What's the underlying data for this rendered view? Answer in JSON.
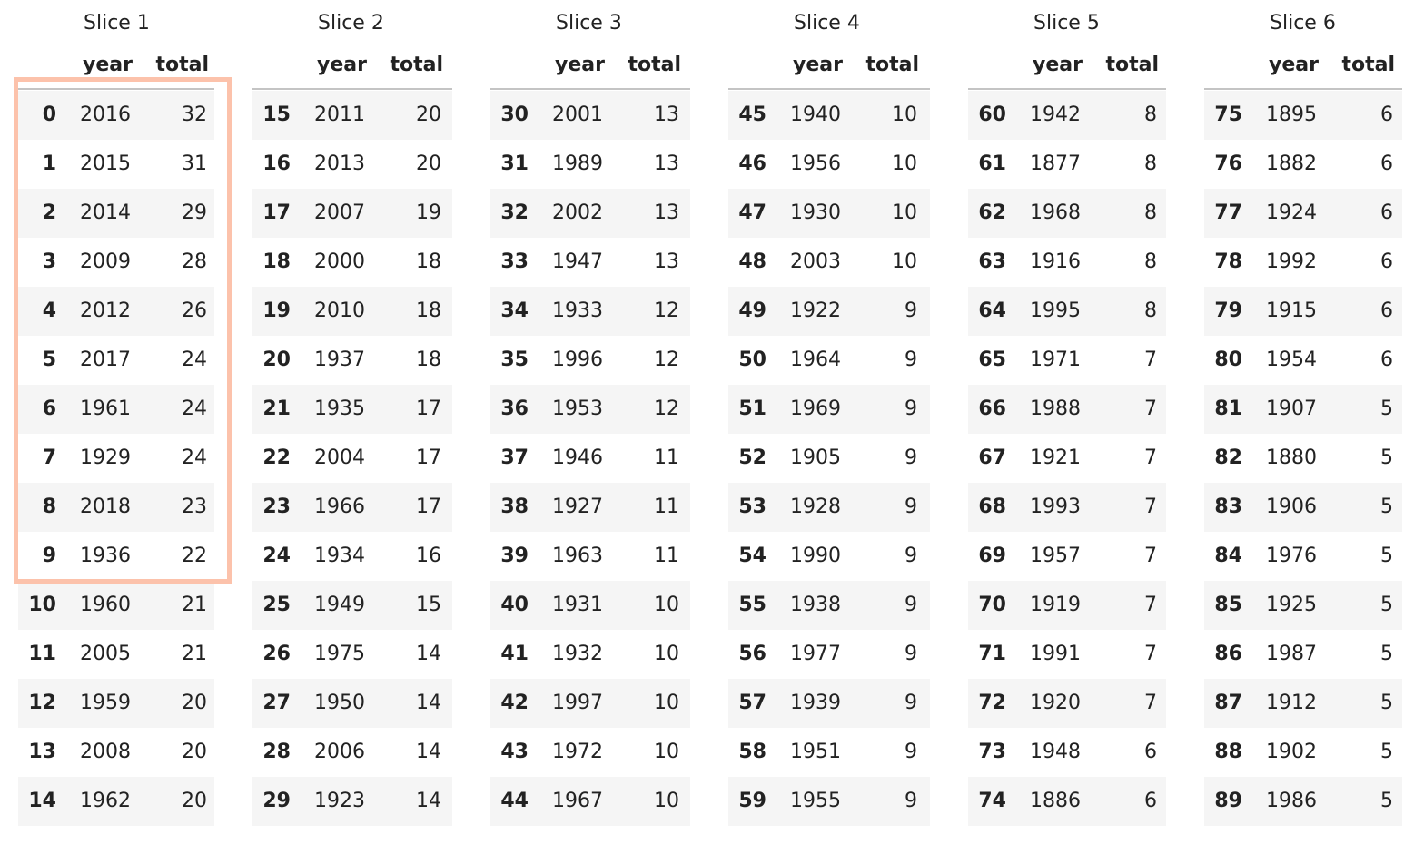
{
  "columns": {
    "year": "year",
    "total": "total"
  },
  "highlight_color": "#fcc2ab",
  "slices": [
    {
      "title": "Slice 1",
      "rows": [
        {
          "idx": "0",
          "year": "2016",
          "total": "32"
        },
        {
          "idx": "1",
          "year": "2015",
          "total": "31"
        },
        {
          "idx": "2",
          "year": "2014",
          "total": "29"
        },
        {
          "idx": "3",
          "year": "2009",
          "total": "28"
        },
        {
          "idx": "4",
          "year": "2012",
          "total": "26"
        },
        {
          "idx": "5",
          "year": "2017",
          "total": "24"
        },
        {
          "idx": "6",
          "year": "1961",
          "total": "24"
        },
        {
          "idx": "7",
          "year": "1929",
          "total": "24"
        },
        {
          "idx": "8",
          "year": "2018",
          "total": "23"
        },
        {
          "idx": "9",
          "year": "1936",
          "total": "22"
        },
        {
          "idx": "10",
          "year": "1960",
          "total": "21"
        },
        {
          "idx": "11",
          "year": "2005",
          "total": "21"
        },
        {
          "idx": "12",
          "year": "1959",
          "total": "20"
        },
        {
          "idx": "13",
          "year": "2008",
          "total": "20"
        },
        {
          "idx": "14",
          "year": "1962",
          "total": "20"
        }
      ]
    },
    {
      "title": "Slice 2",
      "rows": [
        {
          "idx": "15",
          "year": "2011",
          "total": "20"
        },
        {
          "idx": "16",
          "year": "2013",
          "total": "20"
        },
        {
          "idx": "17",
          "year": "2007",
          "total": "19"
        },
        {
          "idx": "18",
          "year": "2000",
          "total": "18"
        },
        {
          "idx": "19",
          "year": "2010",
          "total": "18"
        },
        {
          "idx": "20",
          "year": "1937",
          "total": "18"
        },
        {
          "idx": "21",
          "year": "1935",
          "total": "17"
        },
        {
          "idx": "22",
          "year": "2004",
          "total": "17"
        },
        {
          "idx": "23",
          "year": "1966",
          "total": "17"
        },
        {
          "idx": "24",
          "year": "1934",
          "total": "16"
        },
        {
          "idx": "25",
          "year": "1949",
          "total": "15"
        },
        {
          "idx": "26",
          "year": "1975",
          "total": "14"
        },
        {
          "idx": "27",
          "year": "1950",
          "total": "14"
        },
        {
          "idx": "28",
          "year": "2006",
          "total": "14"
        },
        {
          "idx": "29",
          "year": "1923",
          "total": "14"
        }
      ]
    },
    {
      "title": "Slice 3",
      "rows": [
        {
          "idx": "30",
          "year": "2001",
          "total": "13"
        },
        {
          "idx": "31",
          "year": "1989",
          "total": "13"
        },
        {
          "idx": "32",
          "year": "2002",
          "total": "13"
        },
        {
          "idx": "33",
          "year": "1947",
          "total": "13"
        },
        {
          "idx": "34",
          "year": "1933",
          "total": "12"
        },
        {
          "idx": "35",
          "year": "1996",
          "total": "12"
        },
        {
          "idx": "36",
          "year": "1953",
          "total": "12"
        },
        {
          "idx": "37",
          "year": "1946",
          "total": "11"
        },
        {
          "idx": "38",
          "year": "1927",
          "total": "11"
        },
        {
          "idx": "39",
          "year": "1963",
          "total": "11"
        },
        {
          "idx": "40",
          "year": "1931",
          "total": "10"
        },
        {
          "idx": "41",
          "year": "1932",
          "total": "10"
        },
        {
          "idx": "42",
          "year": "1997",
          "total": "10"
        },
        {
          "idx": "43",
          "year": "1972",
          "total": "10"
        },
        {
          "idx": "44",
          "year": "1967",
          "total": "10"
        }
      ]
    },
    {
      "title": "Slice 4",
      "rows": [
        {
          "idx": "45",
          "year": "1940",
          "total": "10"
        },
        {
          "idx": "46",
          "year": "1956",
          "total": "10"
        },
        {
          "idx": "47",
          "year": "1930",
          "total": "10"
        },
        {
          "idx": "48",
          "year": "2003",
          "total": "10"
        },
        {
          "idx": "49",
          "year": "1922",
          "total": "9"
        },
        {
          "idx": "50",
          "year": "1964",
          "total": "9"
        },
        {
          "idx": "51",
          "year": "1969",
          "total": "9"
        },
        {
          "idx": "52",
          "year": "1905",
          "total": "9"
        },
        {
          "idx": "53",
          "year": "1928",
          "total": "9"
        },
        {
          "idx": "54",
          "year": "1990",
          "total": "9"
        },
        {
          "idx": "55",
          "year": "1938",
          "total": "9"
        },
        {
          "idx": "56",
          "year": "1977",
          "total": "9"
        },
        {
          "idx": "57",
          "year": "1939",
          "total": "9"
        },
        {
          "idx": "58",
          "year": "1951",
          "total": "9"
        },
        {
          "idx": "59",
          "year": "1955",
          "total": "9"
        }
      ]
    },
    {
      "title": "Slice 5",
      "rows": [
        {
          "idx": "60",
          "year": "1942",
          "total": "8"
        },
        {
          "idx": "61",
          "year": "1877",
          "total": "8"
        },
        {
          "idx": "62",
          "year": "1968",
          "total": "8"
        },
        {
          "idx": "63",
          "year": "1916",
          "total": "8"
        },
        {
          "idx": "64",
          "year": "1995",
          "total": "8"
        },
        {
          "idx": "65",
          "year": "1971",
          "total": "7"
        },
        {
          "idx": "66",
          "year": "1988",
          "total": "7"
        },
        {
          "idx": "67",
          "year": "1921",
          "total": "7"
        },
        {
          "idx": "68",
          "year": "1993",
          "total": "7"
        },
        {
          "idx": "69",
          "year": "1957",
          "total": "7"
        },
        {
          "idx": "70",
          "year": "1919",
          "total": "7"
        },
        {
          "idx": "71",
          "year": "1991",
          "total": "7"
        },
        {
          "idx": "72",
          "year": "1920",
          "total": "7"
        },
        {
          "idx": "73",
          "year": "1948",
          "total": "6"
        },
        {
          "idx": "74",
          "year": "1886",
          "total": "6"
        }
      ]
    },
    {
      "title": "Slice 6",
      "rows": [
        {
          "idx": "75",
          "year": "1895",
          "total": "6"
        },
        {
          "idx": "76",
          "year": "1882",
          "total": "6"
        },
        {
          "idx": "77",
          "year": "1924",
          "total": "6"
        },
        {
          "idx": "78",
          "year": "1992",
          "total": "6"
        },
        {
          "idx": "79",
          "year": "1915",
          "total": "6"
        },
        {
          "idx": "80",
          "year": "1954",
          "total": "6"
        },
        {
          "idx": "81",
          "year": "1907",
          "total": "5"
        },
        {
          "idx": "82",
          "year": "1880",
          "total": "5"
        },
        {
          "idx": "83",
          "year": "1906",
          "total": "5"
        },
        {
          "idx": "84",
          "year": "1976",
          "total": "5"
        },
        {
          "idx": "85",
          "year": "1925",
          "total": "5"
        },
        {
          "idx": "86",
          "year": "1987",
          "total": "5"
        },
        {
          "idx": "87",
          "year": "1912",
          "total": "5"
        },
        {
          "idx": "88",
          "year": "1902",
          "total": "5"
        },
        {
          "idx": "89",
          "year": "1986",
          "total": "5"
        }
      ]
    }
  ]
}
